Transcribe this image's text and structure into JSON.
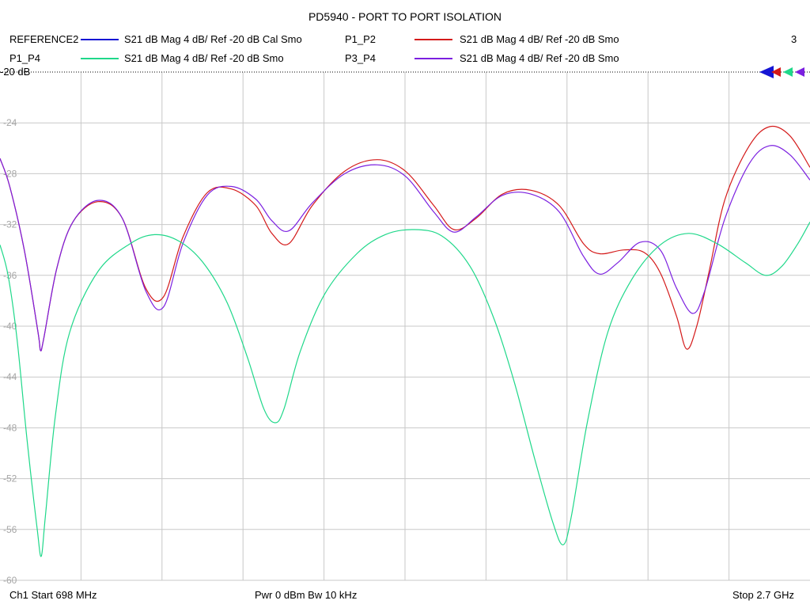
{
  "title": "PD5940 - PORT TO PORT ISOLATION",
  "legend": [
    {
      "trace": "REFERENCE2",
      "desc": "S21  dB Mag  4 dB/ Ref -20 dB  Cal Smo",
      "color": "#1515d4"
    },
    {
      "trace": "P1_P2",
      "desc": "S21  dB Mag  4 dB/ Ref -20 dB  Smo",
      "color": "#d41a1a"
    },
    {
      "trace": "P1_P4",
      "desc": "S21  dB Mag  4 dB/ Ref -20 dB  Smo",
      "color": "#1fd88a"
    },
    {
      "trace": "P3_P4",
      "desc": "S21  dB Mag  4 dB/ Ref -20 dB  Smo",
      "color": "#7b1fe0"
    }
  ],
  "sweep_number": "3",
  "ref_label": "-20 dB",
  "footer": {
    "start": "Ch1  Start  698 MHz",
    "power_bw": "Pwr  0 dBm  Bw  10 kHz",
    "stop": "Stop  2.7 GHz"
  },
  "chart_data": {
    "type": "line",
    "ylim": [
      -60,
      -20
    ],
    "xlim": [
      698,
      2700
    ],
    "x_unit": "MHz",
    "y_unit": "dB",
    "yticks": [
      "-20",
      "-24",
      "-28",
      "-32",
      "-36",
      "-40",
      "-44",
      "-48",
      "-52",
      "-56",
      "-60"
    ],
    "x_divisions": 10,
    "grid": true,
    "series": [
      {
        "name": "P1_P2",
        "color": "#d41a1a",
        "points": [
          [
            698,
            -26.8
          ],
          [
            722,
            -29
          ],
          [
            758,
            -34
          ],
          [
            792,
            -40.5
          ],
          [
            798,
            -41.9
          ],
          [
            806,
            -41
          ],
          [
            838,
            -35.5
          ],
          [
            878,
            -31.8
          ],
          [
            940,
            -30.2
          ],
          [
            1000,
            -31.5
          ],
          [
            1058,
            -37
          ],
          [
            1102,
            -37.7
          ],
          [
            1150,
            -33
          ],
          [
            1210,
            -29.5
          ],
          [
            1270,
            -29.2
          ],
          [
            1330,
            -30.5
          ],
          [
            1370,
            -32.7
          ],
          [
            1412,
            -33.5
          ],
          [
            1470,
            -30.5
          ],
          [
            1550,
            -27.8
          ],
          [
            1630,
            -26.9
          ],
          [
            1700,
            -27.8
          ],
          [
            1770,
            -30.5
          ],
          [
            1820,
            -32.4
          ],
          [
            1875,
            -31.5
          ],
          [
            1940,
            -29.6
          ],
          [
            2010,
            -29.3
          ],
          [
            2080,
            -30.5
          ],
          [
            2140,
            -33.5
          ],
          [
            2180,
            -34.3
          ],
          [
            2240,
            -34
          ],
          [
            2290,
            -34.2
          ],
          [
            2330,
            -35.8
          ],
          [
            2370,
            -39.2
          ],
          [
            2395,
            -41.8
          ],
          [
            2420,
            -40
          ],
          [
            2450,
            -35.8
          ],
          [
            2490,
            -30
          ],
          [
            2550,
            -25.8
          ],
          [
            2600,
            -24.3
          ],
          [
            2650,
            -25
          ],
          [
            2700,
            -27.5
          ]
        ]
      },
      {
        "name": "P3_P4",
        "color": "#7b1fe0",
        "points": [
          [
            698,
            -26.8
          ],
          [
            722,
            -29
          ],
          [
            758,
            -34
          ],
          [
            792,
            -40.5
          ],
          [
            798,
            -41.9
          ],
          [
            806,
            -41
          ],
          [
            838,
            -35.5
          ],
          [
            878,
            -31.8
          ],
          [
            940,
            -30.1
          ],
          [
            1000,
            -31.5
          ],
          [
            1058,
            -37.2
          ],
          [
            1102,
            -38.5
          ],
          [
            1150,
            -33.5
          ],
          [
            1210,
            -29.7
          ],
          [
            1270,
            -29
          ],
          [
            1330,
            -30
          ],
          [
            1370,
            -31.7
          ],
          [
            1412,
            -32.5
          ],
          [
            1470,
            -30.3
          ],
          [
            1550,
            -28
          ],
          [
            1630,
            -27.3
          ],
          [
            1700,
            -28.2
          ],
          [
            1770,
            -31
          ],
          [
            1820,
            -32.6
          ],
          [
            1875,
            -31.4
          ],
          [
            1940,
            -29.7
          ],
          [
            2010,
            -29.6
          ],
          [
            2080,
            -31
          ],
          [
            2140,
            -34.5
          ],
          [
            2180,
            -35.9
          ],
          [
            2225,
            -35
          ],
          [
            2280,
            -33.4
          ],
          [
            2330,
            -34
          ],
          [
            2370,
            -37
          ],
          [
            2410,
            -39
          ],
          [
            2440,
            -37.2
          ],
          [
            2490,
            -31.5
          ],
          [
            2550,
            -27.2
          ],
          [
            2600,
            -25.8
          ],
          [
            2650,
            -26.5
          ],
          [
            2700,
            -28.5
          ]
        ]
      },
      {
        "name": "P1_P4",
        "color": "#1fd88a",
        "points": [
          [
            698,
            -33.6
          ],
          [
            718,
            -36
          ],
          [
            740,
            -41
          ],
          [
            765,
            -49
          ],
          [
            790,
            -56
          ],
          [
            800,
            -58.1
          ],
          [
            810,
            -55
          ],
          [
            835,
            -47
          ],
          [
            870,
            -40.5
          ],
          [
            940,
            -35.7
          ],
          [
            1020,
            -33.5
          ],
          [
            1080,
            -32.8
          ],
          [
            1140,
            -33.3
          ],
          [
            1200,
            -35
          ],
          [
            1260,
            -38.2
          ],
          [
            1310,
            -42.5
          ],
          [
            1350,
            -46.5
          ],
          [
            1378,
            -47.6
          ],
          [
            1400,
            -46.5
          ],
          [
            1440,
            -42
          ],
          [
            1500,
            -37.5
          ],
          [
            1580,
            -34.3
          ],
          [
            1650,
            -32.8
          ],
          [
            1720,
            -32.4
          ],
          [
            1790,
            -32.9
          ],
          [
            1860,
            -35.3
          ],
          [
            1920,
            -39.5
          ],
          [
            1970,
            -44.5
          ],
          [
            2020,
            -50.5
          ],
          [
            2065,
            -55.5
          ],
          [
            2090,
            -57.2
          ],
          [
            2110,
            -55
          ],
          [
            2150,
            -47.5
          ],
          [
            2200,
            -40.5
          ],
          [
            2260,
            -36.3
          ],
          [
            2330,
            -33.6
          ],
          [
            2400,
            -32.7
          ],
          [
            2470,
            -33.5
          ],
          [
            2540,
            -35
          ],
          [
            2590,
            -36
          ],
          [
            2630,
            -35.3
          ],
          [
            2670,
            -33.5
          ],
          [
            2700,
            -31.8
          ]
        ]
      }
    ]
  }
}
